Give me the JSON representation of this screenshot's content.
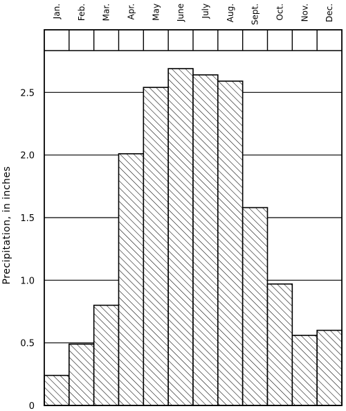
{
  "chart_data": {
    "type": "bar",
    "title": "",
    "xlabel": "",
    "ylabel": "Precipitation, in inches",
    "categories": [
      "Jan.",
      "Feb.",
      "Mar.",
      "Apr.",
      "May",
      "June",
      "July",
      "Aug.",
      "Sept.",
      "Oct.",
      "Nov.",
      "Dec."
    ],
    "values": [
      0.24,
      0.49,
      0.8,
      2.01,
      2.54,
      2.69,
      2.64,
      2.59,
      1.58,
      0.97,
      0.56,
      0.6
    ],
    "ylim": [
      0,
      3.0
    ],
    "yticks": [
      0,
      0.5,
      1.0,
      1.5,
      2.0,
      2.5
    ],
    "ytick_labels": [
      "0",
      "0.5",
      "1.0",
      "1.5",
      "2.0",
      "2.5"
    ],
    "grid": "horizontal",
    "bar_fill": "diagonal-hatch",
    "colors": {
      "bar_stroke": "#000000",
      "hatch": "#000000",
      "background": "#ffffff",
      "grid": "#000000"
    }
  }
}
